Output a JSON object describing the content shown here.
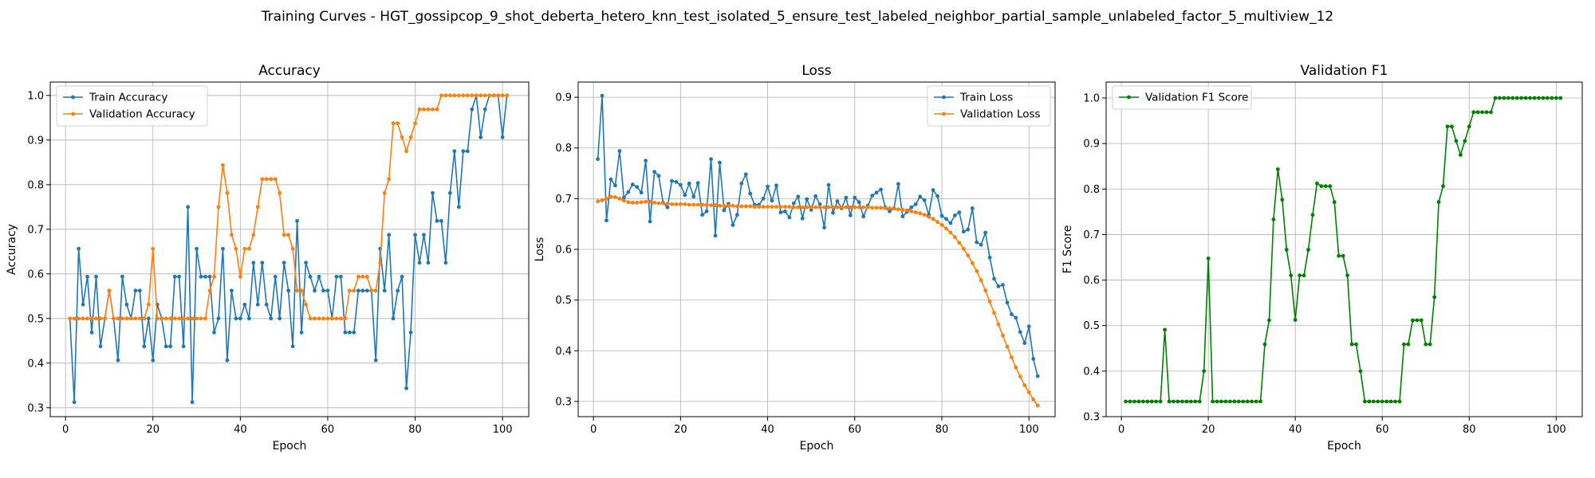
{
  "figure": {
    "suptitle": "Training Curves - HGT_gossipcop_9_shot_deberta_hetero_knn_test_isolated_5_ensure_test_labeled_neighbor_partial_sample_unlabeled_factor_5_multiview_12"
  },
  "chart_data": [
    {
      "type": "line",
      "title": "Accuracy",
      "xlabel": "Epoch",
      "ylabel": "Accuracy",
      "xlim": [
        -3.5,
        106
      ],
      "ylim": [
        0.28,
        1.03
      ],
      "xticks": [
        0,
        20,
        40,
        60,
        80,
        100
      ],
      "yticks": [
        0.3,
        0.4,
        0.5,
        0.6,
        0.7,
        0.8,
        0.9,
        1.0
      ],
      "xtick_labels": [
        "0",
        "20",
        "40",
        "60",
        "80",
        "100"
      ],
      "ytick_labels": [
        "0.3",
        "0.4",
        "0.5",
        "0.6",
        "0.7",
        "0.8",
        "0.9",
        "1.0"
      ],
      "grid": true,
      "legend_position": "upper-left",
      "x_start": 1,
      "series": [
        {
          "name": "Train Accuracy",
          "color": "#1f77b4",
          "values": [
            0.5,
            0.3125,
            0.65625,
            0.53125,
            0.59375,
            0.46875,
            0.59375,
            0.4375,
            0.5,
            0.5625,
            0.5,
            0.40625,
            0.59375,
            0.53125,
            0.5,
            0.5625,
            0.5625,
            0.4375,
            0.5,
            0.40625,
            0.53125,
            0.5,
            0.4375,
            0.4375,
            0.59375,
            0.59375,
            0.4375,
            0.75,
            0.3125,
            0.65625,
            0.59375,
            0.59375,
            0.59375,
            0.46875,
            0.5,
            0.65625,
            0.40625,
            0.5625,
            0.5,
            0.5,
            0.53125,
            0.5,
            0.625,
            0.53125,
            0.625,
            0.53125,
            0.5,
            0.59375,
            0.5,
            0.625,
            0.5625,
            0.4375,
            0.71875,
            0.46875,
            0.625,
            0.59375,
            0.5625,
            0.59375,
            0.5625,
            0.5625,
            0.5,
            0.59375,
            0.59375,
            0.46875,
            0.46875,
            0.46875,
            0.5625,
            0.5625,
            0.5625,
            0.5625,
            0.40625,
            0.65625,
            0.5625,
            0.6875,
            0.5,
            0.5625,
            0.59375,
            0.34375,
            0.46875,
            0.6875,
            0.625,
            0.6875,
            0.625,
            0.78125,
            0.71875,
            0.71875,
            0.625,
            0.78125,
            0.875,
            0.75,
            0.875,
            0.875,
            0.96875,
            1.0,
            0.90625,
            0.96875,
            1.0,
            1.0,
            1.0,
            0.90625,
            1.0
          ]
        },
        {
          "name": "Validation Accuracy",
          "color": "#ff7f0e",
          "values": [
            0.5,
            0.5,
            0.5,
            0.5,
            0.5,
            0.5,
            0.5,
            0.5,
            0.5,
            0.5625,
            0.5,
            0.5,
            0.5,
            0.5,
            0.5,
            0.5,
            0.5,
            0.5,
            0.53125,
            0.65625,
            0.5,
            0.5,
            0.5,
            0.5,
            0.5,
            0.5,
            0.5,
            0.5,
            0.5,
            0.5,
            0.5,
            0.5,
            0.5625,
            0.59375,
            0.75,
            0.84375,
            0.78125,
            0.6875,
            0.65625,
            0.59375,
            0.65625,
            0.65625,
            0.6875,
            0.75,
            0.8125,
            0.8125,
            0.8125,
            0.8125,
            0.78125,
            0.6875,
            0.6875,
            0.65625,
            0.5625,
            0.5625,
            0.53125,
            0.5,
            0.5,
            0.5,
            0.5,
            0.5,
            0.5,
            0.5,
            0.5,
            0.5,
            0.5625,
            0.5625,
            0.59375,
            0.59375,
            0.59375,
            0.5625,
            0.5625,
            0.625,
            0.78125,
            0.8125,
            0.9375,
            0.9375,
            0.90625,
            0.875,
            0.90625,
            0.9375,
            0.96875,
            0.96875,
            0.96875,
            0.96875,
            0.96875,
            1.0,
            1.0,
            1.0,
            1.0,
            1.0,
            1.0,
            1.0,
            1.0,
            1.0,
            1.0,
            1.0,
            1.0,
            1.0,
            1.0,
            1.0,
            1.0
          ]
        }
      ]
    },
    {
      "type": "line",
      "title": "Loss",
      "xlabel": "Epoch",
      "ylabel": "Loss",
      "xlim": [
        -3.5,
        106
      ],
      "ylim": [
        0.27,
        0.93
      ],
      "xticks": [
        0,
        20,
        40,
        60,
        80,
        100
      ],
      "yticks": [
        0.3,
        0.4,
        0.5,
        0.6,
        0.7,
        0.8,
        0.9
      ],
      "xtick_labels": [
        "0",
        "20",
        "40",
        "60",
        "80",
        "100"
      ],
      "ytick_labels": [
        "0.3",
        "0.4",
        "0.5",
        "0.6",
        "0.7",
        "0.8",
        "0.9"
      ],
      "grid": true,
      "legend_position": "upper-right",
      "x_start": 1,
      "series": [
        {
          "name": "Train Loss",
          "color": "#1f77b4",
          "values": [
            0.778,
            0.903,
            0.657,
            0.738,
            0.726,
            0.794,
            0.702,
            0.713,
            0.728,
            0.723,
            0.712,
            0.775,
            0.655,
            0.753,
            0.745,
            0.692,
            0.683,
            0.735,
            0.733,
            0.727,
            0.707,
            0.73,
            0.704,
            0.731,
            0.668,
            0.675,
            0.778,
            0.627,
            0.771,
            0.677,
            0.69,
            0.648,
            0.668,
            0.73,
            0.748,
            0.71,
            0.688,
            0.688,
            0.7,
            0.724,
            0.696,
            0.726,
            0.673,
            0.675,
            0.663,
            0.691,
            0.704,
            0.661,
            0.699,
            0.678,
            0.705,
            0.689,
            0.643,
            0.727,
            0.672,
            0.695,
            0.681,
            0.702,
            0.667,
            0.702,
            0.693,
            0.665,
            0.686,
            0.706,
            0.712,
            0.718,
            0.683,
            0.675,
            0.681,
            0.729,
            0.665,
            0.674,
            0.683,
            0.689,
            0.704,
            0.697,
            0.668,
            0.717,
            0.705,
            0.666,
            0.66,
            0.652,
            0.667,
            0.673,
            0.635,
            0.639,
            0.681,
            0.614,
            0.609,
            0.633,
            0.584,
            0.542,
            0.527,
            0.53,
            0.495,
            0.472,
            0.465,
            0.437,
            0.415,
            0.448,
            0.384,
            0.35
          ]
        },
        {
          "name": "Validation Loss",
          "color": "#ff7f0e",
          "values": [
            0.695,
            0.697,
            0.7,
            0.704,
            0.703,
            0.7,
            0.696,
            0.693,
            0.692,
            0.692,
            0.693,
            0.694,
            0.694,
            0.692,
            0.691,
            0.691,
            0.69,
            0.689,
            0.689,
            0.689,
            0.689,
            0.688,
            0.688,
            0.688,
            0.688,
            0.688,
            0.687,
            0.687,
            0.686,
            0.686,
            0.686,
            0.686,
            0.685,
            0.685,
            0.685,
            0.685,
            0.684,
            0.684,
            0.684,
            0.684,
            0.684,
            0.684,
            0.684,
            0.684,
            0.684,
            0.683,
            0.683,
            0.683,
            0.683,
            0.683,
            0.683,
            0.683,
            0.683,
            0.683,
            0.683,
            0.683,
            0.683,
            0.683,
            0.683,
            0.683,
            0.683,
            0.683,
            0.683,
            0.682,
            0.682,
            0.682,
            0.681,
            0.681,
            0.68,
            0.679,
            0.678,
            0.677,
            0.675,
            0.673,
            0.671,
            0.668,
            0.664,
            0.66,
            0.654,
            0.648,
            0.641,
            0.633,
            0.624,
            0.613,
            0.601,
            0.588,
            0.573,
            0.557,
            0.539,
            0.519,
            0.497,
            0.475,
            0.452,
            0.43,
            0.408,
            0.387,
            0.367,
            0.349,
            0.332,
            0.318,
            0.304,
            0.292
          ]
        }
      ]
    },
    {
      "type": "line",
      "title": "Validation F1",
      "xlabel": "Epoch",
      "ylabel": "F1 Score",
      "xlim": [
        -3.5,
        106
      ],
      "ylim": [
        0.3,
        1.035
      ],
      "xticks": [
        0,
        20,
        40,
        60,
        80,
        100
      ],
      "yticks": [
        0.3,
        0.4,
        0.5,
        0.6,
        0.7,
        0.8,
        0.9,
        1.0
      ],
      "xtick_labels": [
        "0",
        "20",
        "40",
        "60",
        "80",
        "100"
      ],
      "ytick_labels": [
        "0.3",
        "0.4",
        "0.5",
        "0.6",
        "0.7",
        "0.8",
        "0.9",
        "1.0"
      ],
      "grid": true,
      "legend_position": "upper-left",
      "x_start": 1,
      "series": [
        {
          "name": "Validation F1 Score",
          "color": "#008000",
          "values": [
            0.3333,
            0.3333,
            0.3333,
            0.3333,
            0.3333,
            0.3333,
            0.3333,
            0.3333,
            0.3333,
            0.4909,
            0.3333,
            0.3333,
            0.3333,
            0.3333,
            0.3333,
            0.3333,
            0.3333,
            0.3333,
            0.4,
            0.6476,
            0.3333,
            0.3333,
            0.3333,
            0.3333,
            0.3333,
            0.3333,
            0.3333,
            0.3333,
            0.3333,
            0.3333,
            0.3333,
            0.3333,
            0.4589,
            0.5118,
            0.7333,
            0.8434,
            0.7765,
            0.6667,
            0.6103,
            0.5125,
            0.6103,
            0.6103,
            0.6667,
            0.7431,
            0.8125,
            0.8063,
            0.8063,
            0.8063,
            0.7714,
            0.6532,
            0.6532,
            0.6103,
            0.4589,
            0.4589,
            0.4,
            0.3333,
            0.3333,
            0.3333,
            0.3333,
            0.3333,
            0.3333,
            0.3333,
            0.3333,
            0.3333,
            0.4589,
            0.4589,
            0.5118,
            0.5118,
            0.5118,
            0.4589,
            0.4589,
            0.5625,
            0.7714,
            0.8063,
            0.9373,
            0.9373,
            0.9057,
            0.875,
            0.9057,
            0.9373,
            0.9688,
            0.9688,
            0.9688,
            0.9688,
            0.9688,
            1.0,
            1.0,
            1.0,
            1.0,
            1.0,
            1.0,
            1.0,
            1.0,
            1.0,
            1.0,
            1.0,
            1.0,
            1.0,
            1.0,
            1.0,
            1.0
          ]
        }
      ]
    }
  ]
}
